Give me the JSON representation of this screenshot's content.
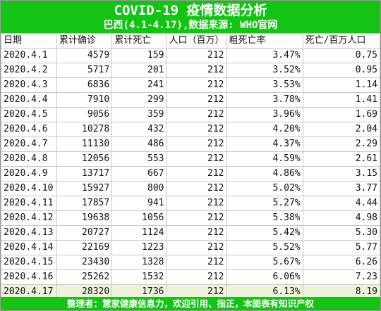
{
  "header": {
    "title": "COVID-19 疫情数据分析",
    "subtitle": "巴西(4.1-4.17),数据来源: WHO官网"
  },
  "table": {
    "columns": [
      "日期",
      "累计确诊",
      "累计死亡",
      "人口（百万）",
      "粗死亡率",
      "死亡/百万人口"
    ],
    "rows": [
      [
        "2020.4.1",
        "4579",
        "159",
        "212",
        "3.47%",
        "0.75"
      ],
      [
        "2020.4.2",
        "5717",
        "201",
        "212",
        "3.52%",
        "0.95"
      ],
      [
        "2020.4.3",
        "6836",
        "241",
        "212",
        "3.53%",
        "1.14"
      ],
      [
        "2020.4.4",
        "7910",
        "299",
        "212",
        "3.78%",
        "1.41"
      ],
      [
        "2020.4.5",
        "9056",
        "359",
        "212",
        "3.96%",
        "1.69"
      ],
      [
        "2020.4.6",
        "10278",
        "432",
        "212",
        "4.20%",
        "2.04"
      ],
      [
        "2020.4.7",
        "11130",
        "486",
        "212",
        "4.37%",
        "2.29"
      ],
      [
        "2020.4.8",
        "12056",
        "553",
        "212",
        "4.59%",
        "2.61"
      ],
      [
        "2020.4.9",
        "13717",
        "667",
        "212",
        "4.86%",
        "3.15"
      ],
      [
        "2020.4.10",
        "15927",
        "800",
        "212",
        "5.02%",
        "3.77"
      ],
      [
        "2020.4.11",
        "17857",
        "941",
        "212",
        "5.27%",
        "4.44"
      ],
      [
        "2020.4.12",
        "19638",
        "1056",
        "212",
        "5.38%",
        "4.98"
      ],
      [
        "2020.4.13",
        "20727",
        "1124",
        "212",
        "5.42%",
        "5.30"
      ],
      [
        "2020.4.14",
        "22169",
        "1223",
        "212",
        "5.52%",
        "5.77"
      ],
      [
        "2020.4.15",
        "23430",
        "1328",
        "212",
        "5.67%",
        "6.26"
      ],
      [
        "2020.4.16",
        "25262",
        "1532",
        "212",
        "6.06%",
        "7.23"
      ],
      [
        "2020.4.17",
        "28320",
        "1736",
        "212",
        "6.13%",
        "8.19"
      ]
    ],
    "highlight_row": 16
  },
  "footer": {
    "text": "整理者：慧家健康信息力，欢迎引用、指正，本图表有知识产权"
  },
  "colors": {
    "header_bg": "#14c414",
    "highlight_row_bg": "#eef3dc"
  }
}
